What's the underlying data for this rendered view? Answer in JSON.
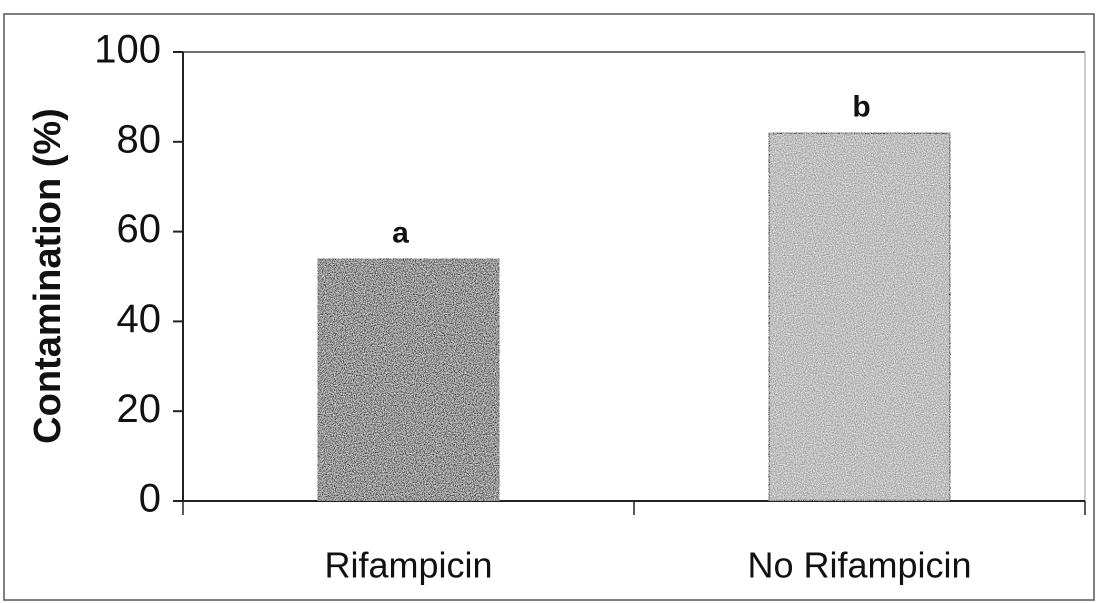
{
  "chart_data": {
    "type": "bar",
    "ylabel": "Contamination (%)",
    "categories": [
      "Rifampicin",
      "No Rifampicin"
    ],
    "values": [
      54,
      82
    ],
    "annotations": [
      "a",
      "b"
    ],
    "colors": [
      "#3b3b3b",
      "#9b9b9b"
    ],
    "ylim": [
      0,
      100
    ],
    "yticks": [
      0,
      20,
      40,
      60,
      80,
      100
    ]
  }
}
